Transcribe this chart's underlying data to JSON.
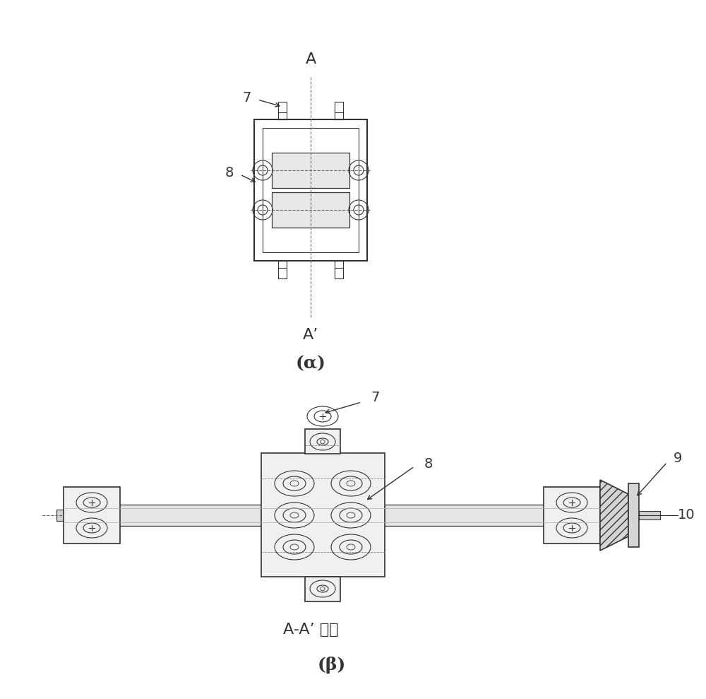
{
  "bg_color": "#ffffff",
  "line_color": "#333333",
  "light_gray": "#aaaaaa",
  "mid_gray": "#888888",
  "hatch_color": "#555555",
  "label_7a": "7",
  "label_8a": "8",
  "label_7b": "7",
  "label_8b": "8",
  "label_9": "9",
  "label_10": "10",
  "label_A": "A",
  "label_Aprime": "A’",
  "label_a": "(α)",
  "label_b": "(β)",
  "label_aaa": "A-A’ 剖面",
  "font_size_label": 16,
  "font_size_number": 14,
  "font_size_caption": 16
}
